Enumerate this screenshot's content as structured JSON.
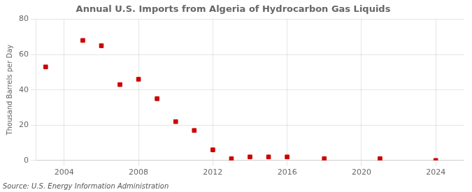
{
  "chart_data": {
    "type": "scatter",
    "title": "Annual U.S. Imports from Algeria of Hydrocarbon Gas Liquids",
    "ylabel": "Thousand Barrels per Day",
    "annotations": [
      "Source: U.S. Energy Information Administration"
    ],
    "x": [
      2003,
      2005,
      2006,
      2007,
      2008,
      2009,
      2010,
      2011,
      2012,
      2013,
      2014,
      2015,
      2016,
      2018,
      2021,
      2024
    ],
    "values": [
      53,
      68,
      65,
      43,
      46,
      35,
      22,
      17,
      6,
      1,
      2,
      2,
      2,
      1,
      1,
      0
    ],
    "color": "#cc0000",
    "marker": "square",
    "xlim": [
      2002.5,
      2025.5
    ],
    "ylim": [
      0,
      80
    ],
    "xticks": [
      2004,
      2008,
      2012,
      2016,
      2020,
      2024
    ],
    "yticks": [
      0,
      20,
      40,
      60,
      80
    ],
    "grid": true
  }
}
